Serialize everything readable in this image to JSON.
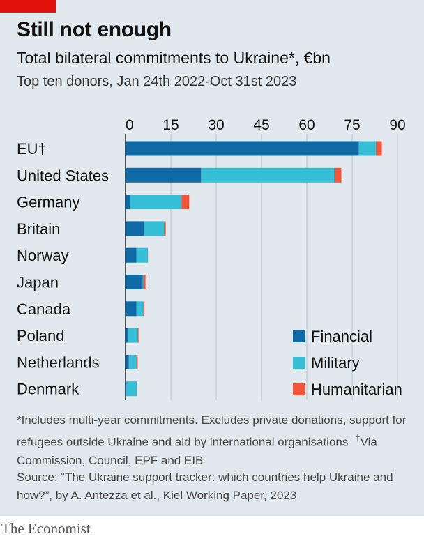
{
  "header": {
    "title": "Still not enough",
    "subtitle": "Total bilateral commitments to Ukraine*, €bn",
    "subsubtitle": "Top ten donors, Jan 24th 2022-Oct 31st 2023"
  },
  "footer": {
    "note": "*Includes multi-year commitments. Excludes private donations, support for refugees outside Ukraine and aid by international organisations",
    "note_dagger_mark": "†",
    "note_dagger": "Via Commission, Council, EPF and EIB",
    "source": "Source: “The Ukraine support tracker: which countries help Ukraine and how?”, by A. Antezza et al., Kiel Working Paper, 2023",
    "brand": "The Economist"
  },
  "chart_data": {
    "type": "bar",
    "orientation": "horizontal",
    "stacked": true,
    "categories": [
      "EU†",
      "United States",
      "Germany",
      "Britain",
      "Norway",
      "Japan",
      "Canada",
      "Poland",
      "Netherlands",
      "Denmark"
    ],
    "series": [
      {
        "name": "Financial",
        "color": "#0f6aa6",
        "values": [
          77.2,
          25,
          1.4,
          6.1,
          3.6,
          5.7,
          3.6,
          0.9,
          1.1,
          0.3
        ]
      },
      {
        "name": "Military",
        "color": "#36c0d8",
        "values": [
          5.6,
          44,
          17.1,
          6.6,
          3.6,
          0.1,
          2.2,
          3.0,
          2.4,
          3.2
        ]
      },
      {
        "name": "Humanitarian",
        "color": "#f2553c",
        "values": [
          2.0,
          2.4,
          2.5,
          0.6,
          0.2,
          0.8,
          0.4,
          0.4,
          0.5,
          0.2
        ]
      }
    ],
    "xticks": [
      0,
      15,
      30,
      45,
      60,
      75,
      90
    ],
    "xlim": [
      0,
      90
    ],
    "xaxis_position": "top",
    "legend": "bottom-right",
    "grid": true
  }
}
